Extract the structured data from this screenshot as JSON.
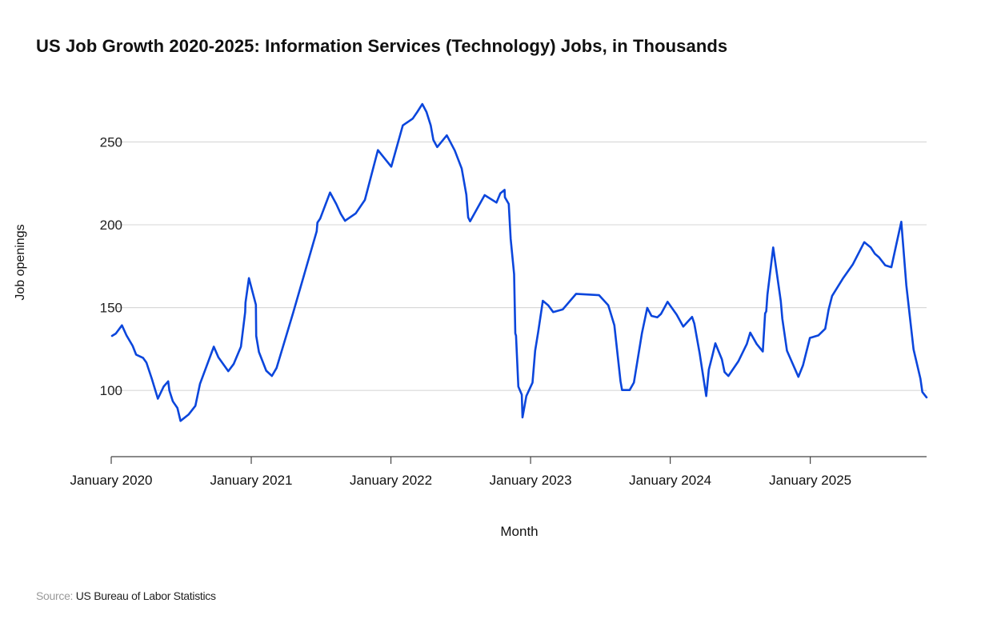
{
  "chart_data": {
    "type": "line",
    "title": "US Job Growth 2020-2025: Information Services (Technology) Jobs, in Thousands",
    "xlabel": "Month",
    "ylabel": "Job openings",
    "xlim": [
      "2020-01-01",
      "2025-11-01"
    ],
    "ylim": [
      60,
      280
    ],
    "x_ticks": [
      "2020-01-01",
      "2021-01-01",
      "2022-01-01",
      "2023-01-01",
      "2024-01-01",
      "2025-01-01"
    ],
    "x_tick_labels": [
      "January 2020",
      "January 2021",
      "January 2022",
      "January 2023",
      "January 2024",
      "January 2025"
    ],
    "y_ticks": [
      100,
      150,
      200,
      250
    ],
    "y_tick_labels": [
      "100",
      "150",
      "200",
      "250"
    ],
    "grid": "horizontal",
    "line_color": "#0b46dc",
    "series": [
      {
        "points": [
          [
            "2020-01-03",
            132.9
          ],
          [
            "2020-01-13",
            134.3
          ],
          [
            "2020-01-29",
            139.3
          ],
          [
            "2020-02-10",
            133.2
          ],
          [
            "2020-02-26",
            126.9
          ],
          [
            "2020-03-06",
            121.6
          ],
          [
            "2020-03-24",
            119.7
          ],
          [
            "2020-04-02",
            116.8
          ],
          [
            "2020-04-16",
            107.1
          ],
          [
            "2020-05-02",
            95.0
          ],
          [
            "2020-05-17",
            102.3
          ],
          [
            "2020-05-29",
            105.5
          ],
          [
            "2020-06-01",
            99.9
          ],
          [
            "2020-06-10",
            93.4
          ],
          [
            "2020-06-22",
            89.4
          ],
          [
            "2020-06-30",
            81.6
          ],
          [
            "2020-07-21",
            85.4
          ],
          [
            "2020-08-08",
            90.7
          ],
          [
            "2020-08-20",
            103.9
          ],
          [
            "2020-09-25",
            126.4
          ],
          [
            "2020-10-07",
            120.0
          ],
          [
            "2020-11-02",
            111.6
          ],
          [
            "2020-11-16",
            115.9
          ],
          [
            "2020-12-05",
            126.4
          ],
          [
            "2020-12-16",
            147.3
          ],
          [
            "2020-12-17",
            153.0
          ],
          [
            "2020-12-26",
            167.8
          ],
          [
            "2021-01-13",
            151.7
          ],
          [
            "2021-01-14",
            132.9
          ],
          [
            "2021-01-21",
            123.2
          ],
          [
            "2021-02-09",
            111.9
          ],
          [
            "2021-02-24",
            108.7
          ],
          [
            "2021-03-08",
            113.5
          ],
          [
            "2021-04-21",
            147.3
          ],
          [
            "2021-06-21",
            196.1
          ],
          [
            "2021-06-23",
            201.3
          ],
          [
            "2021-06-30",
            203.7
          ],
          [
            "2021-07-26",
            219.5
          ],
          [
            "2021-08-11",
            212.6
          ],
          [
            "2021-08-23",
            206.6
          ],
          [
            "2021-09-03",
            202.4
          ],
          [
            "2021-10-01",
            206.9
          ],
          [
            "2021-10-25",
            215.0
          ],
          [
            "2021-11-28",
            245.1
          ],
          [
            "2022-01-02",
            235.1
          ],
          [
            "2022-02-01",
            260.0
          ],
          [
            "2022-02-27",
            264.1
          ],
          [
            "2022-03-11",
            268.1
          ],
          [
            "2022-03-24",
            272.9
          ],
          [
            "2022-04-04",
            268.1
          ],
          [
            "2022-04-15",
            260.0
          ],
          [
            "2022-04-22",
            251.2
          ],
          [
            "2022-05-02",
            246.9
          ],
          [
            "2022-05-27",
            254.0
          ],
          [
            "2022-06-17",
            244.8
          ],
          [
            "2022-07-05",
            234.0
          ],
          [
            "2022-07-17",
            218.2
          ],
          [
            "2022-07-22",
            204.5
          ],
          [
            "2022-07-27",
            202.1
          ],
          [
            "2022-09-03",
            217.9
          ],
          [
            "2022-10-04",
            213.4
          ],
          [
            "2022-10-14",
            219.0
          ],
          [
            "2022-10-25",
            221.1
          ],
          [
            "2022-10-26",
            216.6
          ],
          [
            "2022-11-05",
            212.6
          ],
          [
            "2022-11-10",
            191.6
          ],
          [
            "2022-11-19",
            170.2
          ],
          [
            "2022-11-22",
            134.4
          ],
          [
            "2022-11-24",
            133.0
          ],
          [
            "2022-11-30",
            102.3
          ],
          [
            "2022-12-09",
            97.4
          ],
          [
            "2022-12-11",
            83.7
          ],
          [
            "2022-12-21",
            96.6
          ],
          [
            "2023-01-06",
            104.7
          ],
          [
            "2023-01-13",
            124.0
          ],
          [
            "2023-01-21",
            135.3
          ],
          [
            "2023-02-02",
            154.1
          ],
          [
            "2023-02-16",
            151.4
          ],
          [
            "2023-03-01",
            147.3
          ],
          [
            "2023-03-26",
            148.9
          ],
          [
            "2023-04-30",
            158.3
          ],
          [
            "2023-06-29",
            157.5
          ],
          [
            "2023-07-23",
            151.4
          ],
          [
            "2023-08-08",
            139.3
          ],
          [
            "2023-08-24",
            105.5
          ],
          [
            "2023-08-28",
            100.2
          ],
          [
            "2023-09-17",
            100.2
          ],
          [
            "2023-09-28",
            104.7
          ],
          [
            "2023-10-19",
            134.4
          ],
          [
            "2023-11-02",
            149.8
          ],
          [
            "2023-11-13",
            145.0
          ],
          [
            "2023-11-28",
            144.1
          ],
          [
            "2023-12-08",
            146.2
          ],
          [
            "2023-12-25",
            153.5
          ],
          [
            "2024-01-18",
            145.7
          ],
          [
            "2024-02-04",
            138.5
          ],
          [
            "2024-02-27",
            144.4
          ],
          [
            "2024-03-04",
            140.4
          ],
          [
            "2024-03-18",
            122.4
          ],
          [
            "2024-04-04",
            96.6
          ],
          [
            "2024-04-11",
            112.7
          ],
          [
            "2024-04-20",
            120.8
          ],
          [
            "2024-04-28",
            128.4
          ],
          [
            "2024-05-15",
            118.7
          ],
          [
            "2024-05-22",
            111.1
          ],
          [
            "2024-06-01",
            108.7
          ],
          [
            "2024-06-27",
            117.5
          ],
          [
            "2024-07-19",
            128.0
          ],
          [
            "2024-07-28",
            134.9
          ],
          [
            "2024-08-14",
            128.0
          ],
          [
            "2024-08-30",
            123.5
          ],
          [
            "2024-09-05",
            146.5
          ],
          [
            "2024-09-08",
            147.7
          ],
          [
            "2024-09-11",
            157.8
          ],
          [
            "2024-09-26",
            186.3
          ],
          [
            "2024-10-16",
            153.8
          ],
          [
            "2024-10-20",
            143.3
          ],
          [
            "2024-11-01",
            124.0
          ],
          [
            "2024-12-01",
            108.2
          ],
          [
            "2024-12-13",
            115.1
          ],
          [
            "2024-12-31",
            131.7
          ],
          [
            "2025-01-22",
            133.2
          ],
          [
            "2025-02-09",
            137.2
          ],
          [
            "2025-02-18",
            148.9
          ],
          [
            "2025-02-27",
            157.0
          ],
          [
            "2025-03-27",
            167.5
          ],
          [
            "2025-04-22",
            176.0
          ],
          [
            "2025-05-22",
            189.5
          ],
          [
            "2025-06-08",
            186.3
          ],
          [
            "2025-06-19",
            182.5
          ],
          [
            "2025-06-30",
            180.3
          ],
          [
            "2025-07-16",
            175.5
          ],
          [
            "2025-08-01",
            174.4
          ],
          [
            "2025-08-13",
            187.1
          ],
          [
            "2025-08-27",
            201.8
          ],
          [
            "2025-09-09",
            163.4
          ],
          [
            "2025-09-28",
            124.8
          ],
          [
            "2025-10-16",
            107.1
          ],
          [
            "2025-10-21",
            99.0
          ],
          [
            "2025-11-01",
            95.8
          ]
        ]
      }
    ]
  },
  "source": {
    "label": "Source:",
    "value": "US Bureau of Labor Statistics"
  }
}
